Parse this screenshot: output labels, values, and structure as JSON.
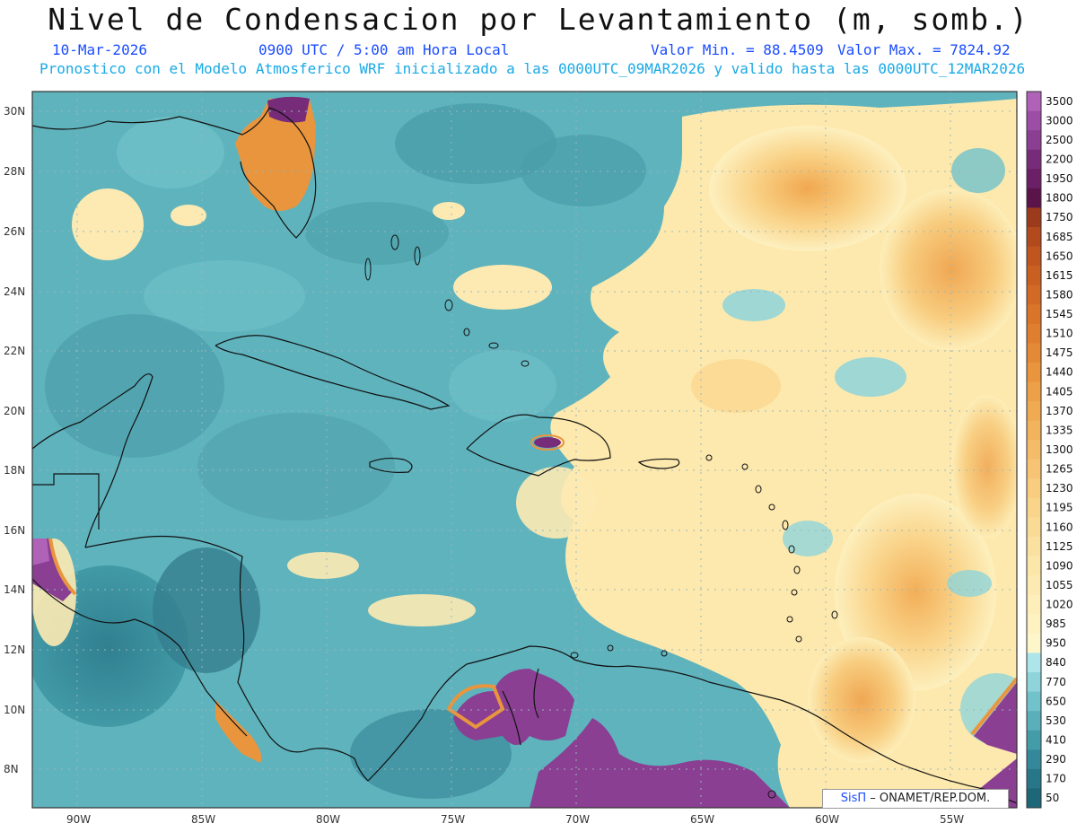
{
  "header": {
    "title": "Nivel de Condensacion por Levantamiento (m, somb.)",
    "date": "10-Mar-2026",
    "time": "0900 UTC / 5:00 am Hora Local",
    "min_label": "Valor Min. = 88.4509",
    "max_label": "Valor Max. = 7824.92",
    "model_info": "Pronostico con el Modelo Atmosferico WRF inicializado a las 0000UTC_09MAR2026 y valido hasta las  0000UTC_12MAR2026"
  },
  "axes": {
    "lat_labels": [
      "30N",
      "28N",
      "26N",
      "24N",
      "22N",
      "20N",
      "18N",
      "16N",
      "14N",
      "12N",
      "10N",
      "8N"
    ],
    "lon_labels": [
      "90W",
      "85W",
      "80W",
      "75W",
      "70W",
      "65W",
      "60W",
      "55W"
    ]
  },
  "colorbar": {
    "labels": [
      "3500",
      "3000",
      "2500",
      "2200",
      "1950",
      "1800",
      "1750",
      "1685",
      "1650",
      "1615",
      "1580",
      "1545",
      "1510",
      "1475",
      "1440",
      "1405",
      "1370",
      "1335",
      "1300",
      "1265",
      "1230",
      "1195",
      "1160",
      "1125",
      "1090",
      "1055",
      "1020",
      "985",
      "950",
      "840",
      "770",
      "650",
      "530",
      "410",
      "290",
      "170",
      "50"
    ],
    "colors": [
      "#b062b8",
      "#9c4ea6",
      "#8a3f92",
      "#772c7a",
      "#6a1f66",
      "#5b1449",
      "#9c3a1c",
      "#b24a1e",
      "#c05520",
      "#ca5f22",
      "#d26a26",
      "#d97429",
      "#df7e2f",
      "#e48a36",
      "#e8953e",
      "#eca047",
      "#efaa52",
      "#f2b35d",
      "#f4bc68",
      "#f6c474",
      "#f8cd80",
      "#f9d48b",
      "#fadb96",
      "#fbe1a0",
      "#fce6a9",
      "#fdeab2",
      "#fdeeba",
      "#fef2c2",
      "#fef6cb",
      "#aee5ea",
      "#8ed4da",
      "#72c2cb",
      "#5aafba",
      "#459ca9",
      "#348899",
      "#287789",
      "#1e6778"
    ]
  },
  "credit": {
    "sis": "SisΠ",
    "org": "– ONAMET/REP.DOM."
  }
}
